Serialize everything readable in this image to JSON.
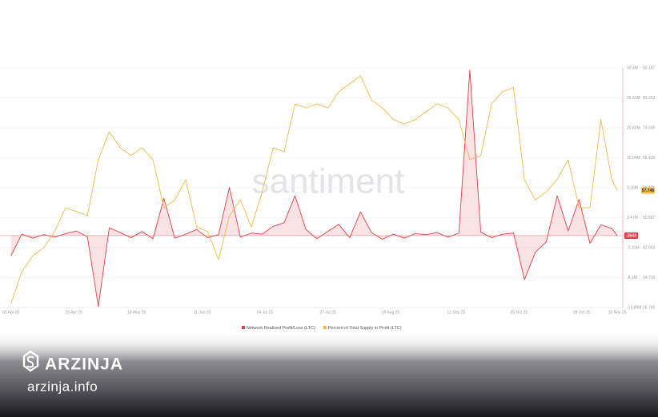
{
  "chart_data": {
    "type": "line",
    "watermark": "santiment",
    "x": [
      "2025-04-02",
      "2025-04-06",
      "2025-04-10",
      "2025-04-14",
      "2025-04-18",
      "2025-04-22",
      "2025-04-26",
      "2025-04-30",
      "2025-05-04",
      "2025-05-08",
      "2025-05-12",
      "2025-05-16",
      "2025-05-20",
      "2025-05-24",
      "2025-05-28",
      "2025-06-01",
      "2025-06-05",
      "2025-06-09",
      "2025-06-13",
      "2025-06-17",
      "2025-06-21",
      "2025-06-25",
      "2025-06-29",
      "2025-07-03",
      "2025-07-07",
      "2025-07-11",
      "2025-07-15",
      "2025-07-19",
      "2025-07-23",
      "2025-07-27",
      "2025-07-31",
      "2025-08-04",
      "2025-08-08",
      "2025-08-12",
      "2025-08-16",
      "2025-08-20",
      "2025-08-24",
      "2025-08-28",
      "2025-09-01",
      "2025-09-05",
      "2025-09-09",
      "2025-09-13",
      "2025-09-17",
      "2025-09-21",
      "2025-09-25",
      "2025-09-29",
      "2025-10-03",
      "2025-10-07",
      "2025-10-11",
      "2025-10-15",
      "2025-10-19",
      "2025-10-23",
      "2025-10-27",
      "2025-10-31",
      "2025-11-04",
      "2025-11-08",
      "2025-11-10"
    ],
    "xlim": [
      "2025-03-29",
      "2025-11-12"
    ],
    "xticks": [
      {
        "value": "2025-04-02",
        "label": "02 Apr 25"
      },
      {
        "value": "2025-04-25",
        "label": "25 Apr 25"
      },
      {
        "value": "2025-05-18",
        "label": "18 May 25"
      },
      {
        "value": "2025-06-11",
        "label": "11 Jun 25"
      },
      {
        "value": "2025-07-04",
        "label": "04 Jul 25"
      },
      {
        "value": "2025-07-27",
        "label": "27 Jul 25"
      },
      {
        "value": "2025-08-19",
        "label": "19 Aug 25"
      },
      {
        "value": "2025-09-12",
        "label": "12 Sep 25"
      },
      {
        "value": "2025-10-05",
        "label": "05 Oct 25"
      },
      {
        "value": "2025-10-28",
        "label": "28 Oct 25"
      },
      {
        "value": "2025-11-10",
        "label": "10 Nov 25"
      }
    ],
    "ylim": [
      -13890000,
      32400000
    ],
    "yticks": [
      {
        "value": 32400000,
        "label": "32.4M"
      },
      {
        "value": 26610000,
        "label": "26.61M"
      },
      {
        "value": 20830000,
        "label": "20.83M"
      },
      {
        "value": 15040000,
        "label": "15.04M"
      },
      {
        "value": 9260000,
        "label": "9.26M"
      },
      {
        "value": 3470000,
        "label": "3.47M"
      },
      {
        "value": -2310000,
        "label": "-2.31M"
      },
      {
        "value": -8100000,
        "label": "-8.1M"
      },
      {
        "value": -13890000,
        "label": "-13.89M"
      }
    ],
    "y2lim": [
      26.795,
      90.197
    ],
    "y2ticks": [
      90.197,
      82.263,
      74.339,
      66.415,
      58.491,
      50.567,
      42.643,
      {
        "value": 34.71,
        "label": "34.710"
      },
      26.795
    ],
    "grid": true,
    "series": [
      {
        "name": "Network Realized Profit/Loss (LTC)",
        "color": "#e0414a",
        "axis": "y",
        "values": [
          -3900000,
          300000,
          -500000,
          200000,
          -300000,
          400000,
          900000,
          -200000,
          -13700000,
          1500000,
          600000,
          -400000,
          800000,
          -600000,
          7200000,
          -500000,
          300000,
          1200000,
          -400000,
          200000,
          9300000,
          -300000,
          500000,
          300000,
          1800000,
          2500000,
          7700000,
          1200000,
          -600000,
          800000,
          2200000,
          -400000,
          4600000,
          600000,
          -700000,
          300000,
          -500000,
          400000,
          200000,
          600000,
          -300000,
          500000,
          32000000,
          700000,
          -400000,
          300000,
          500000,
          -8500000,
          -3200000,
          -1200000,
          7700000,
          900000,
          7000000,
          -1500000,
          2100000,
          1400000,
          -2643
        ]
      },
      {
        "name": "Percent of Total Supply in Profit (LTC)",
        "color": "#f2b84b",
        "axis": "y2",
        "values": [
          27.8,
          36.3,
          40.5,
          42.6,
          46.9,
          53.2,
          52.2,
          51.1,
          65.9,
          73.3,
          69.1,
          67.0,
          69.1,
          65.9,
          53.2,
          55.3,
          60.6,
          48.1,
          46.9,
          39.5,
          51.1,
          55.3,
          48.1,
          57.4,
          69.1,
          68.0,
          80.7,
          79.6,
          80.7,
          79.6,
          83.9,
          86.0,
          88.1,
          81.7,
          79.6,
          76.5,
          75.4,
          76.5,
          78.6,
          80.7,
          79.6,
          76.5,
          65.9,
          67.0,
          80.7,
          83.9,
          85.0,
          60.6,
          55.3,
          57.4,
          60.7,
          65.9,
          53.2,
          53.2,
          76.5,
          60.6,
          57.746
        ]
      }
    ]
  },
  "branding": {
    "name": "ARZINJA",
    "url": "arzinja.info"
  }
}
